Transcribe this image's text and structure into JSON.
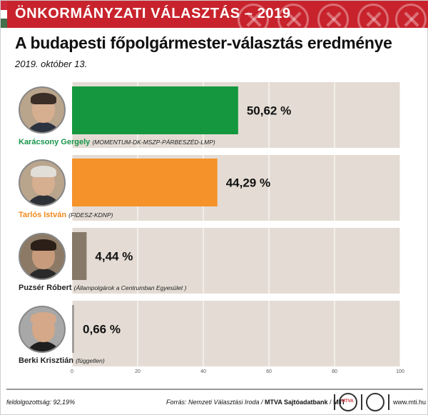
{
  "banner": {
    "title": "ÖNKORMÁNYZATI VÁLASZTÁS – 2019"
  },
  "colors": {
    "banner_red": "#c8232c",
    "flag": [
      "#cd2a3e",
      "#ffffff",
      "#436f4d"
    ],
    "bar_background": "#e4dcd4"
  },
  "header": {
    "title": "A budapesti főpolgármester-választás eredménye",
    "subtitle": "2019. október 13."
  },
  "candidates": [
    {
      "name": "Karácsony Gergely",
      "party": "(MOMENTUM-DK-MSZP-PÁRBESZÉD-LMP)",
      "name_color": "#17954a",
      "photo_icon": "karacsony-photo"
    },
    {
      "name": "Tarlós István",
      "party": "(FIDESZ-KDNP)",
      "name_color": "#f28a1e",
      "photo_icon": "tarlos-photo"
    },
    {
      "name": "Puzsér Róbert",
      "party": "(Állampolgárok a Centrumban Egyesület )",
      "name_color": "#222222",
      "photo_icon": "puzser-photo"
    },
    {
      "name": "Berki Krisztián",
      "party": "(független)",
      "name_color": "#222222",
      "photo_icon": "berki-photo"
    }
  ],
  "chart_data": {
    "type": "bar",
    "orientation": "horizontal",
    "categories": [
      "Karácsony Gergely",
      "Tarlós István",
      "Puzsér Róbert",
      "Berki Krisztián"
    ],
    "values": [
      50.62,
      44.29,
      4.44,
      0.66
    ],
    "value_labels": [
      "50,62 %",
      "44,29 %",
      "4,44 %",
      "0,66 %"
    ],
    "colors": [
      "#15973f",
      "#f5922a",
      "#877967",
      "#a39e9a"
    ],
    "xlim": [
      0,
      100
    ],
    "xticks": [
      0,
      20,
      40,
      60,
      80,
      100
    ],
    "xtick_labels": [
      "0",
      "20",
      "40",
      "60",
      "80",
      "100"
    ],
    "grid": true
  },
  "footer": {
    "processed": "feldolgozottság: 92,19%",
    "source_prefix": "Forrás: Nemzeti Választási Iroda / ",
    "source_mtva": "MTVA Sajtóadatbank",
    "source_sep": " / ",
    "source_mti": "MTI",
    "mtva_logo_text": "MTVA",
    "website": "www.mti.hu"
  }
}
